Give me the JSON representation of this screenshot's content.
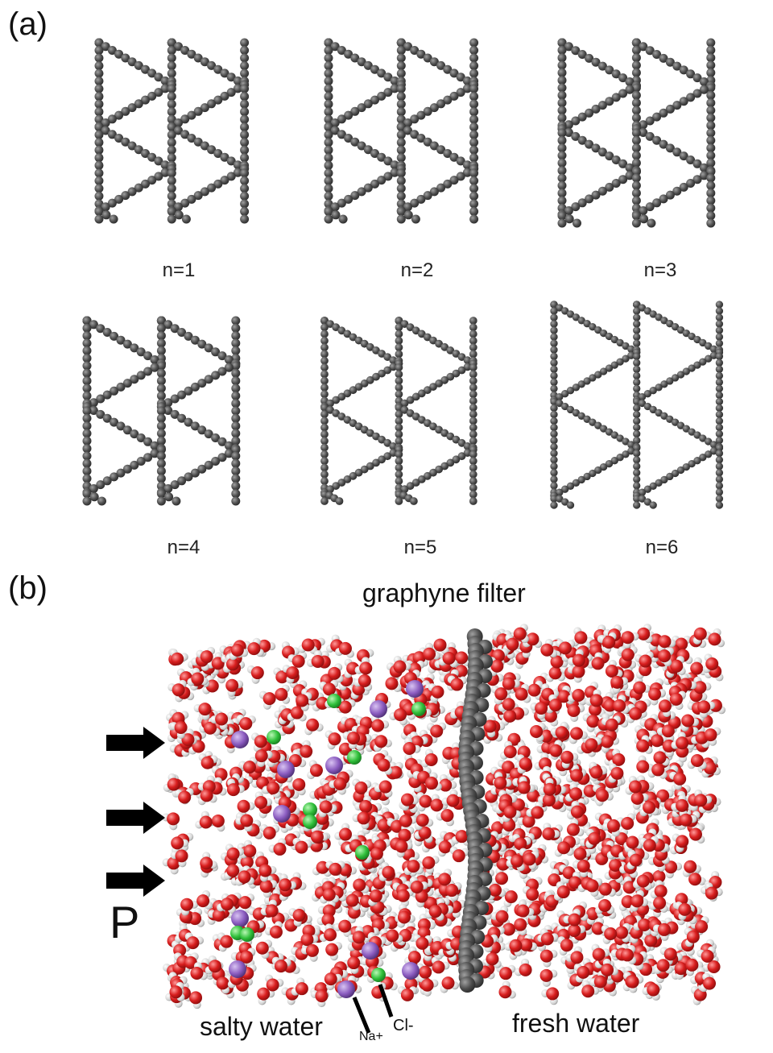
{
  "panel_a": {
    "label": "(a)",
    "lattices": [
      {
        "caption": "n=1",
        "n": 1
      },
      {
        "caption": "n=2",
        "n": 2
      },
      {
        "caption": "n=3",
        "n": 3
      },
      {
        "caption": "n=4",
        "n": 4
      },
      {
        "caption": "n=5",
        "n": 5
      },
      {
        "caption": "n=6",
        "n": 6
      }
    ]
  },
  "panel_b": {
    "label": "(b)",
    "filter_label": "graphyne filter",
    "pressure_label": "P",
    "salty_label": "salty water",
    "fresh_label": "fresh water",
    "na_label": "Na+",
    "cl_label": "Cl-"
  },
  "colors": {
    "carbon": "#4d4d4d",
    "oxygen": "#d81e1e",
    "hydrogen": "#d9d9d9",
    "sodium": "#8a5bbf",
    "chlorine": "#2fbf3a",
    "arrow": "#000000"
  }
}
